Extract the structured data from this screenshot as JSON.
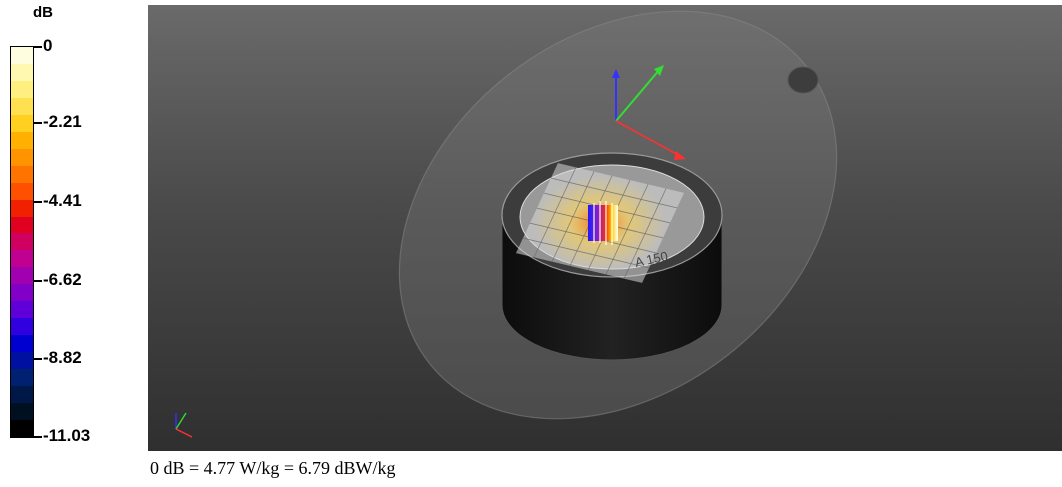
{
  "legend": {
    "unit": "dB",
    "ticks": [
      "0",
      "-2.21",
      "-4.41",
      "-6.62",
      "-8.82",
      "-11.03"
    ],
    "colors": [
      "#fffde0",
      "#fff8b0",
      "#ffef80",
      "#ffe050",
      "#ffd020",
      "#ffb000",
      "#ff9400",
      "#ff7400",
      "#ff5000",
      "#f02000",
      "#e00020",
      "#d00060",
      "#c00090",
      "#a000b0",
      "#8000c8",
      "#6000d8",
      "#3000e0",
      "#0000d0",
      "#0010a0",
      "#002070",
      "#001848",
      "#001020",
      "#000000"
    ]
  },
  "viewport": {
    "probe_label": "A 150",
    "axis_colors": {
      "x": "#ff3030",
      "y": "#33dd33",
      "z": "#3333ff"
    }
  },
  "footer": {
    "note": "0 dB = 4.77 W/kg = 6.79 dBW/kg"
  }
}
